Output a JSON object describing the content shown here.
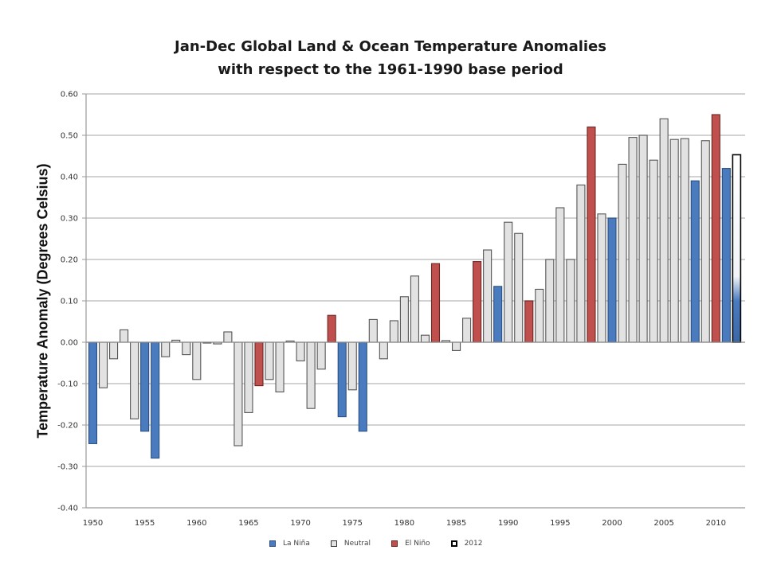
{
  "chart_data": {
    "type": "bar",
    "title": "Jan-Dec Global Land & Ocean Temperature Anomalies",
    "subtitle": "with respect to the 1961-1990 base period",
    "xlabel": "",
    "ylabel": "Temperature Anomaly (Degrees Celsius)",
    "ylim": [
      -0.4,
      0.6
    ],
    "yticks": [
      "0.60",
      "0.50",
      "0.40",
      "0.30",
      "0.20",
      "0.10",
      "0.00",
      "-0.10",
      "-0.20",
      "-0.30",
      "-0.40"
    ],
    "ytick_values": [
      0.6,
      0.5,
      0.4,
      0.3,
      0.2,
      0.1,
      0.0,
      -0.1,
      -0.2,
      -0.3,
      -0.4
    ],
    "xticks": [
      "1950",
      "1955",
      "1960",
      "1965",
      "1970",
      "1975",
      "1980",
      "1985",
      "1990",
      "1995",
      "2000",
      "2005",
      "2010"
    ],
    "grid": true,
    "legend_position": "bottom",
    "legend": [
      {
        "label": "La Niña",
        "key": "lanina"
      },
      {
        "label": "Neutral",
        "key": "neutral"
      },
      {
        "label": "El Niño",
        "key": "elnino"
      },
      {
        "label": "2012",
        "key": "y2012"
      }
    ],
    "colors": {
      "lanina": "#4a7bbf",
      "neutral": "#e2e2e2",
      "elnino": "#c0504d",
      "y2012": "#ffffff"
    },
    "years": [
      1950,
      1951,
      1952,
      1953,
      1954,
      1955,
      1956,
      1957,
      1958,
      1959,
      1960,
      1961,
      1962,
      1963,
      1964,
      1965,
      1966,
      1967,
      1968,
      1969,
      1970,
      1971,
      1972,
      1973,
      1974,
      1975,
      1976,
      1977,
      1978,
      1979,
      1980,
      1981,
      1982,
      1983,
      1984,
      1985,
      1986,
      1987,
      1988,
      1989,
      1990,
      1991,
      1992,
      1993,
      1994,
      1995,
      1996,
      1997,
      1998,
      1999,
      2000,
      2001,
      2002,
      2003,
      2004,
      2005,
      2006,
      2007,
      2008,
      2009,
      2010,
      2011,
      2012
    ],
    "values": [
      -0.245,
      -0.11,
      -0.04,
      0.03,
      -0.185,
      -0.215,
      -0.28,
      -0.035,
      0.005,
      -0.03,
      -0.09,
      -0.002,
      -0.004,
      0.025,
      -0.25,
      -0.17,
      -0.105,
      -0.09,
      -0.12,
      0.003,
      -0.045,
      -0.16,
      -0.065,
      0.065,
      -0.18,
      -0.115,
      -0.215,
      0.055,
      -0.04,
      0.052,
      0.11,
      0.16,
      0.017,
      0.19,
      0.004,
      -0.02,
      0.058,
      0.195,
      0.223,
      0.135,
      0.29,
      0.263,
      0.1,
      0.128,
      0.2,
      0.325,
      0.2,
      0.38,
      0.52,
      0.31,
      0.3,
      0.43,
      0.495,
      0.5,
      0.44,
      0.54,
      0.49,
      0.492,
      0.39,
      0.487,
      0.55,
      0.42,
      0.453
    ],
    "categories": [
      "lanina",
      "neutral",
      "neutral",
      "neutral",
      "neutral",
      "lanina",
      "lanina",
      "neutral",
      "neutral",
      "neutral",
      "neutral",
      "neutral",
      "neutral",
      "neutral",
      "neutral",
      "neutral",
      "elnino",
      "neutral",
      "neutral",
      "neutral",
      "neutral",
      "neutral",
      "neutral",
      "elnino",
      "lanina",
      "neutral",
      "lanina",
      "neutral",
      "neutral",
      "neutral",
      "neutral",
      "neutral",
      "neutral",
      "elnino",
      "neutral",
      "neutral",
      "neutral",
      "elnino",
      "neutral",
      "lanina",
      "neutral",
      "neutral",
      "elnino",
      "neutral",
      "neutral",
      "neutral",
      "neutral",
      "neutral",
      "elnino",
      "neutral",
      "lanina",
      "neutral",
      "neutral",
      "neutral",
      "neutral",
      "neutral",
      "neutral",
      "neutral",
      "lanina",
      "neutral",
      "elnino",
      "lanina",
      "y2012"
    ]
  }
}
